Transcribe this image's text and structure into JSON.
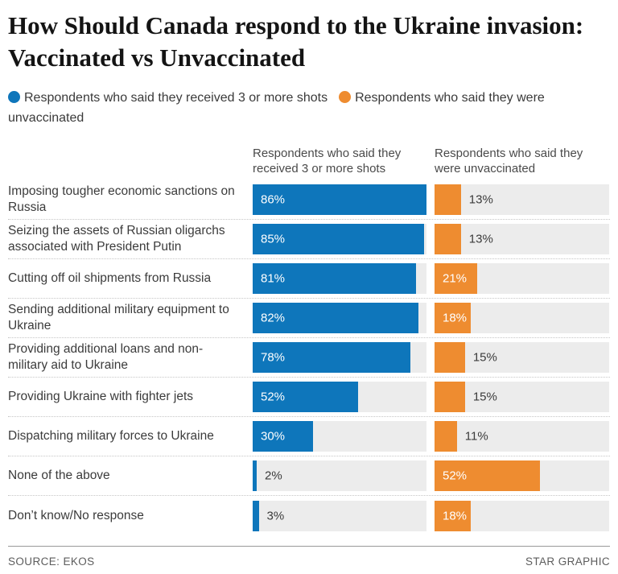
{
  "title": "How Should Canada respond to the Ukraine invasion: Vaccinated vs Unvaccinated",
  "legend": {
    "items": [
      {
        "label": "Respondents who said they received 3 or more shots",
        "color": "#0e76bb"
      },
      {
        "label": "Respondents who said they were unvaccinated",
        "color": "#ee8c30"
      }
    ]
  },
  "column_headers": [
    "Respondents who said they received 3 or more shots",
    "Respondents who said they were unvaccinated"
  ],
  "chart_data": {
    "type": "bar",
    "orientation": "horizontal",
    "unit": "%",
    "xlim": [
      0,
      86
    ],
    "scale_max": 86,
    "value_label_inside_threshold": 18,
    "track_color": "#ececec",
    "categories": [
      "Imposing tougher economic sanctions on Russia",
      "Seizing the assets of Russian oligarchs associated with President Putin",
      "Cutting off oil shipments from Russia",
      "Sending additional military equipment to Ukraine",
      "Providing additional loans and non-military aid to Ukraine",
      "Providing Ukraine with fighter jets",
      "Dispatching military forces to Ukraine",
      "None of the above",
      "Don’t know/No response"
    ],
    "series": [
      {
        "name": "Respondents who said they received 3 or more shots",
        "color": "#0e76bb",
        "values": [
          86,
          85,
          81,
          82,
          78,
          52,
          30,
          2,
          3
        ]
      },
      {
        "name": "Respondents who said they were unvaccinated",
        "color": "#ee8c30",
        "values": [
          13,
          13,
          21,
          18,
          15,
          15,
          11,
          52,
          18
        ]
      }
    ]
  },
  "footer": {
    "source": "SOURCE: EKOS",
    "credit": "STAR GRAPHIC"
  }
}
